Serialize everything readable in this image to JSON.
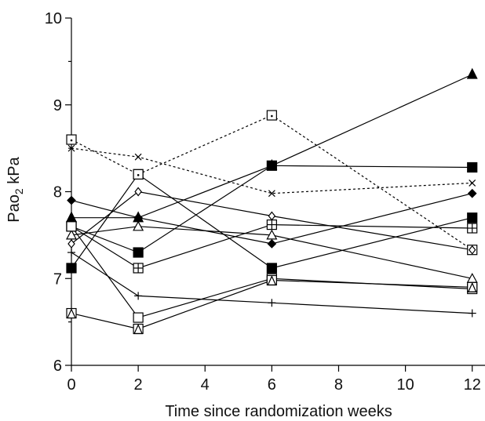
{
  "chart_data": {
    "type": "line",
    "xlabel": "Time since randomization  weeks",
    "ylabel": {
      "main": "Pao",
      "sub": "2",
      "unit": " kPa"
    },
    "xlim": [
      0,
      12.5
    ],
    "ylim": [
      6,
      10
    ],
    "x_ticks": [
      0,
      2,
      4,
      6,
      8,
      10,
      12
    ],
    "y_ticks": [
      6,
      7,
      8,
      9,
      10
    ],
    "y_minor_ticks": [
      6.5,
      7.5,
      8.5,
      9.5
    ],
    "grid": false,
    "legend": "none",
    "series": [
      {
        "marker": "filled-triangle",
        "line": "solid",
        "x": [
          0,
          2,
          6,
          12
        ],
        "y": [
          7.7,
          7.7,
          8.3,
          9.35
        ]
      },
      {
        "marker": "filled-square",
        "line": "solid",
        "x": [
          0,
          2,
          6,
          12
        ],
        "y": [
          7.12,
          8.2,
          7.12,
          7.7
        ]
      },
      {
        "marker": "filled-square",
        "line": "solid",
        "x": [
          0,
          2,
          6,
          12
        ],
        "y": [
          7.6,
          7.3,
          8.3,
          8.28
        ]
      },
      {
        "marker": "open-square-dot",
        "line": "dotted",
        "x": [
          0,
          2,
          6,
          12
        ],
        "y": [
          8.6,
          8.2,
          8.88,
          7.33
        ]
      },
      {
        "marker": "cross",
        "line": "dotted",
        "x": [
          0,
          2,
          6,
          12
        ],
        "y": [
          8.5,
          8.4,
          7.98,
          8.1
        ]
      },
      {
        "marker": "filled-diamond",
        "line": "solid",
        "x": [
          0,
          2,
          6,
          12
        ],
        "y": [
          7.9,
          7.7,
          7.4,
          7.98
        ]
      },
      {
        "marker": "open-diamond",
        "line": "solid",
        "x": [
          0,
          2,
          6,
          12
        ],
        "y": [
          7.4,
          8.0,
          7.72,
          7.33
        ]
      },
      {
        "marker": "open-triangle",
        "line": "solid",
        "x": [
          0,
          2,
          6,
          12
        ],
        "y": [
          7.5,
          7.6,
          7.5,
          7.0
        ]
      },
      {
        "marker": "square-plus",
        "line": "solid",
        "x": [
          0,
          2,
          6,
          12
        ],
        "y": [
          7.6,
          7.12,
          7.62,
          7.58
        ]
      },
      {
        "marker": "open-square",
        "line": "solid",
        "x": [
          0,
          2,
          6,
          12
        ],
        "y": [
          7.6,
          6.55,
          7.0,
          6.88
        ]
      },
      {
        "marker": "square-triangle",
        "line": "solid",
        "x": [
          0,
          2,
          6,
          12
        ],
        "y": [
          6.6,
          6.42,
          6.98,
          6.9
        ]
      },
      {
        "marker": "plus",
        "line": "solid",
        "x": [
          0,
          2,
          6,
          12
        ],
        "y": [
          7.3,
          6.8,
          6.72,
          6.6
        ]
      }
    ]
  }
}
